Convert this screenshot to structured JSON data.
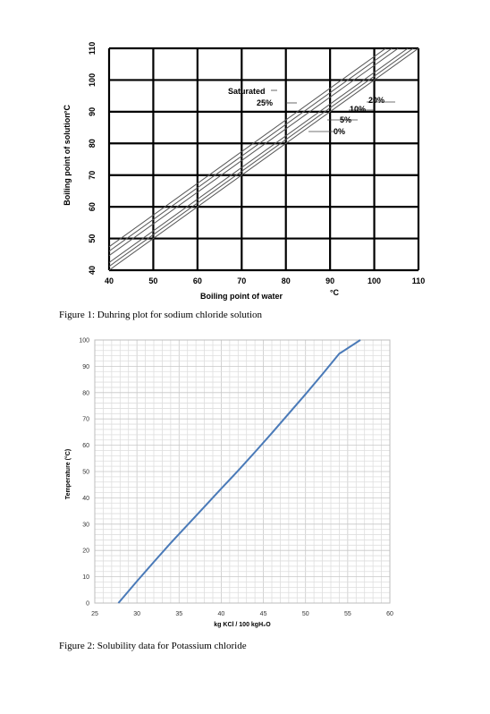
{
  "chart_data": [
    {
      "type": "line",
      "caption": "Figure 1: Duhring plot for sodium chloride solution",
      "title": "",
      "xlabel": "Boiling point of water",
      "xunit": "°C",
      "ylabel": "Boiling point of solution",
      "yunit": "°C",
      "xlim": [
        40,
        110
      ],
      "ylim": [
        40,
        110
      ],
      "x_ticks": [
        "40",
        "50",
        "60",
        "70",
        "80",
        "90",
        "100",
        "110"
      ],
      "y_ticks": [
        "40",
        "50",
        "60",
        "70",
        "80",
        "90",
        "100",
        "110"
      ],
      "grid": true,
      "legend": "annotations near upper right of lines",
      "series": [
        {
          "name": "0%",
          "x": [
            40,
            110
          ],
          "y": [
            40,
            110
          ]
        },
        {
          "name": "5%",
          "x": [
            40,
            110
          ],
          "y": [
            41.2,
            111.2
          ]
        },
        {
          "name": "10%",
          "x": [
            40,
            110
          ],
          "y": [
            42.4,
            112.4
          ]
        },
        {
          "name": "20%",
          "x": [
            40,
            110
          ],
          "y": [
            44.6,
            114.6
          ]
        },
        {
          "name": "25%",
          "x": [
            40,
            110
          ],
          "y": [
            46.0,
            116.0
          ]
        },
        {
          "name": "Saturated",
          "x": [
            40,
            110
          ],
          "y": [
            47.4,
            117.4
          ]
        }
      ]
    },
    {
      "type": "line",
      "caption": "Figure 2: Solubility data for Potassium chloride",
      "title": "",
      "xlabel": "kg KCl / 100 kgH₂O",
      "ylabel": "Temperature (°C)",
      "xlim": [
        25,
        60
      ],
      "ylim": [
        0,
        100
      ],
      "x_ticks": [
        "25",
        "30",
        "35",
        "40",
        "45",
        "50",
        "55",
        "60"
      ],
      "y_ticks": [
        "0",
        "10",
        "20",
        "30",
        "40",
        "50",
        "60",
        "70",
        "80",
        "90",
        "100"
      ],
      "grid": true,
      "line_color": "#4a7ab8",
      "series": [
        {
          "name": "",
          "x": [
            27.8,
            30,
            32,
            34,
            36,
            38,
            40,
            42,
            44,
            46,
            48,
            50,
            52,
            54,
            56.5
          ],
          "y": [
            0,
            8.3,
            15.6,
            22.8,
            29.7,
            36.6,
            43.5,
            50.3,
            57.4,
            64.6,
            72.0,
            79.4,
            87.0,
            94.8,
            100
          ]
        }
      ]
    }
  ]
}
